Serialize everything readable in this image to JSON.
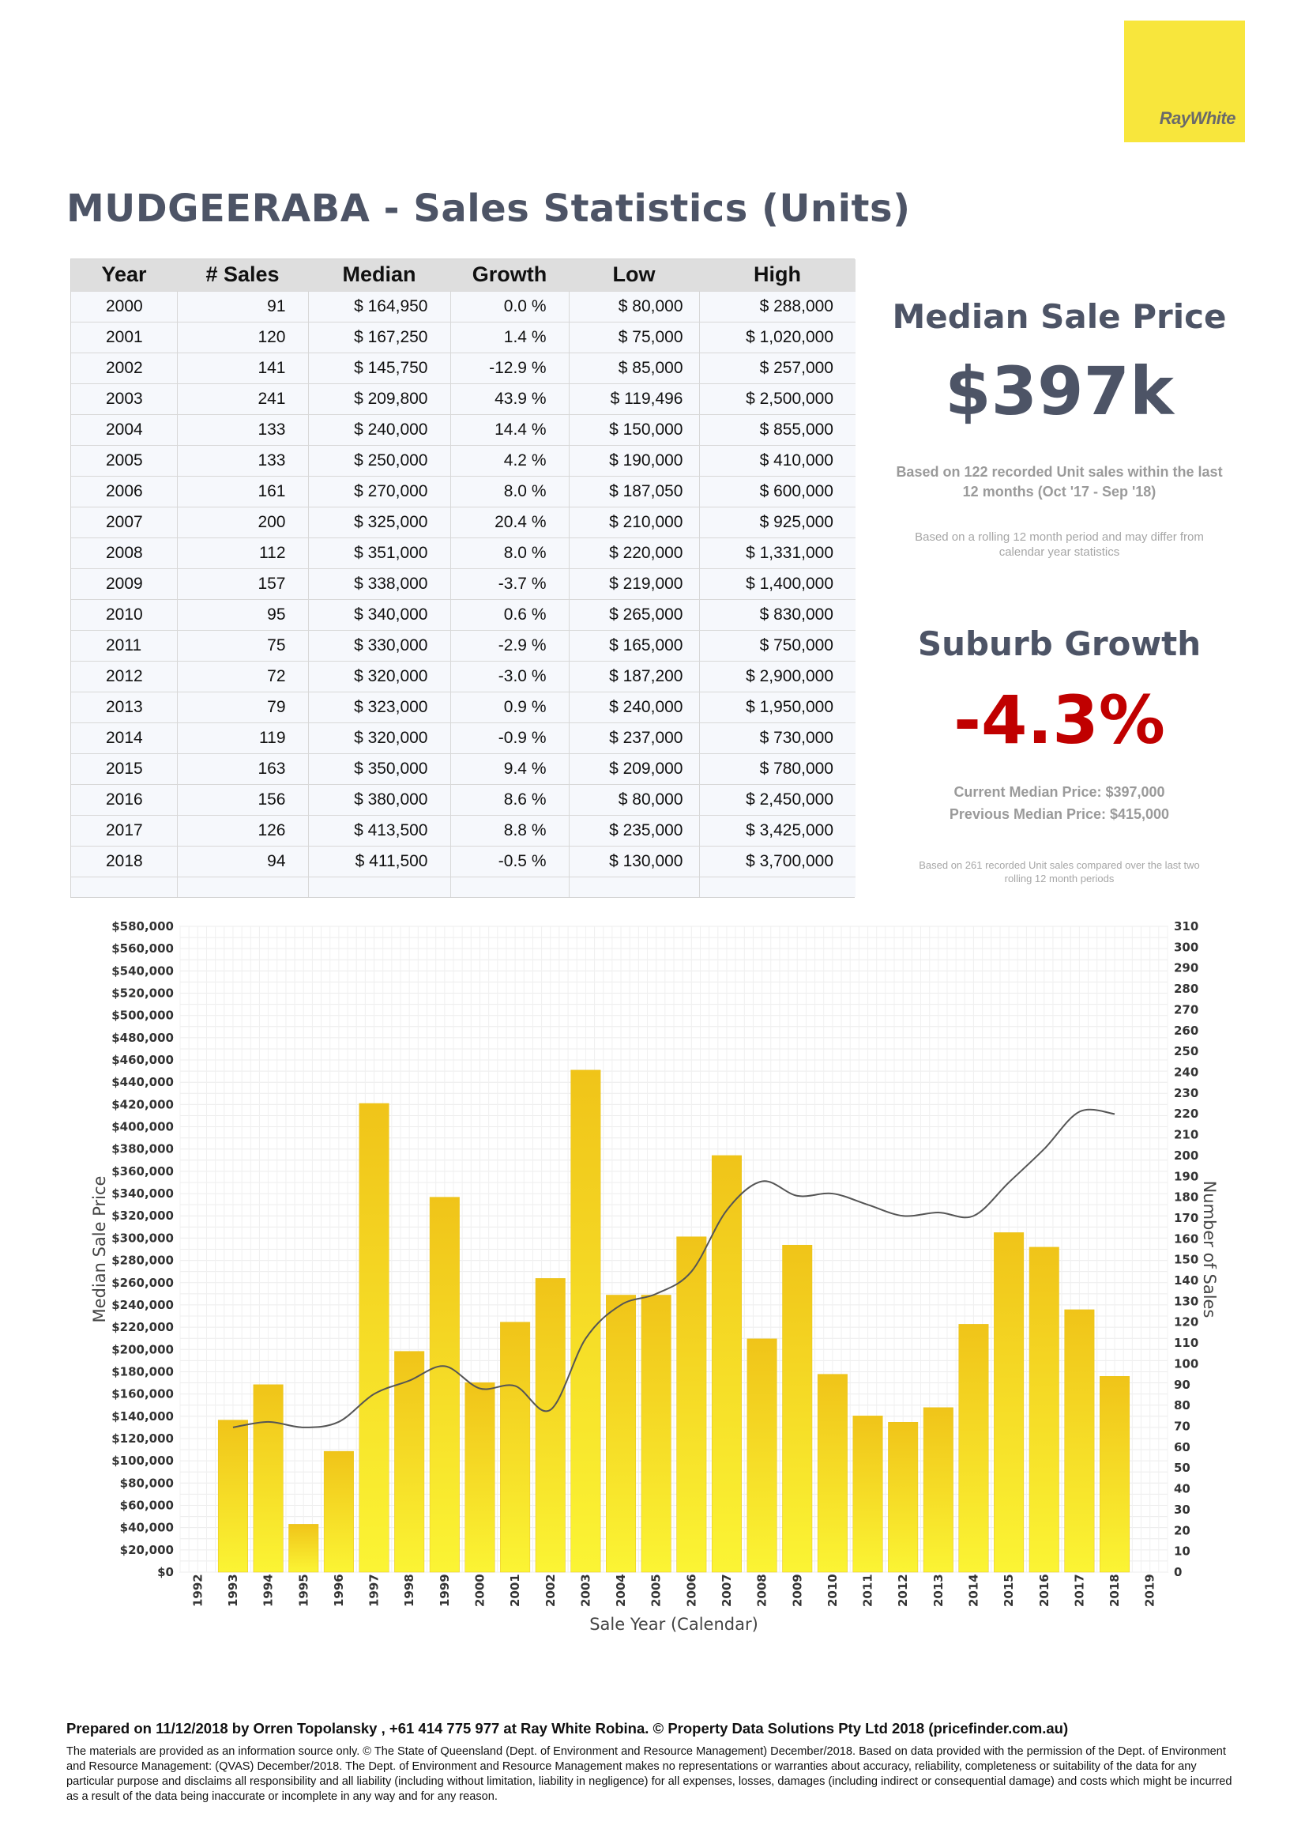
{
  "logo": {
    "text": "RayWhite",
    "color": "#f8e63c"
  },
  "title": "MUDGEERABA - Sales Statistics (Units)",
  "table": {
    "headers": [
      "Year",
      "# Sales",
      "Median",
      "Growth",
      "Low",
      "High"
    ],
    "rows": [
      {
        "year": "2000",
        "sales": "91",
        "median": "$ 164,950",
        "growth": "0.0 %",
        "low": "$ 80,000",
        "high": "$ 288,000",
        "trend": "pos"
      },
      {
        "year": "2001",
        "sales": "120",
        "median": "$ 167,250",
        "growth": "1.4 %",
        "low": "$ 75,000",
        "high": "$ 1,020,000",
        "trend": "pos"
      },
      {
        "year": "2002",
        "sales": "141",
        "median": "$ 145,750",
        "growth": "-12.9 %",
        "low": "$ 85,000",
        "high": "$ 257,000",
        "trend": "neg"
      },
      {
        "year": "2003",
        "sales": "241",
        "median": "$ 209,800",
        "growth": "43.9 %",
        "low": "$ 119,496",
        "high": "$ 2,500,000",
        "trend": "pos"
      },
      {
        "year": "2004",
        "sales": "133",
        "median": "$ 240,000",
        "growth": "14.4 %",
        "low": "$ 150,000",
        "high": "$ 855,000",
        "trend": "pos"
      },
      {
        "year": "2005",
        "sales": "133",
        "median": "$ 250,000",
        "growth": "4.2 %",
        "low": "$ 190,000",
        "high": "$ 410,000",
        "trend": "pos"
      },
      {
        "year": "2006",
        "sales": "161",
        "median": "$ 270,000",
        "growth": "8.0 %",
        "low": "$ 187,050",
        "high": "$ 600,000",
        "trend": "pos"
      },
      {
        "year": "2007",
        "sales": "200",
        "median": "$ 325,000",
        "growth": "20.4 %",
        "low": "$ 210,000",
        "high": "$ 925,000",
        "trend": "pos"
      },
      {
        "year": "2008",
        "sales": "112",
        "median": "$ 351,000",
        "growth": "8.0 %",
        "low": "$ 220,000",
        "high": "$ 1,331,000",
        "trend": "pos"
      },
      {
        "year": "2009",
        "sales": "157",
        "median": "$ 338,000",
        "growth": "-3.7 %",
        "low": "$ 219,000",
        "high": "$ 1,400,000",
        "trend": "neg"
      },
      {
        "year": "2010",
        "sales": "95",
        "median": "$ 340,000",
        "growth": "0.6 %",
        "low": "$ 265,000",
        "high": "$ 830,000",
        "trend": "pos"
      },
      {
        "year": "2011",
        "sales": "75",
        "median": "$ 330,000",
        "growth": "-2.9 %",
        "low": "$ 165,000",
        "high": "$ 750,000",
        "trend": "neg"
      },
      {
        "year": "2012",
        "sales": "72",
        "median": "$ 320,000",
        "growth": "-3.0 %",
        "low": "$ 187,200",
        "high": "$ 2,900,000",
        "trend": "neg"
      },
      {
        "year": "2013",
        "sales": "79",
        "median": "$ 323,000",
        "growth": "0.9 %",
        "low": "$ 240,000",
        "high": "$ 1,950,000",
        "trend": "pos"
      },
      {
        "year": "2014",
        "sales": "119",
        "median": "$ 320,000",
        "growth": "-0.9 %",
        "low": "$ 237,000",
        "high": "$ 730,000",
        "trend": "neg"
      },
      {
        "year": "2015",
        "sales": "163",
        "median": "$ 350,000",
        "growth": "9.4 %",
        "low": "$ 209,000",
        "high": "$ 780,000",
        "trend": "pos"
      },
      {
        "year": "2016",
        "sales": "156",
        "median": "$ 380,000",
        "growth": "8.6 %",
        "low": "$ 80,000",
        "high": "$ 2,450,000",
        "trend": "pos"
      },
      {
        "year": "2017",
        "sales": "126",
        "median": "$ 413,500",
        "growth": "8.8 %",
        "low": "$ 235,000",
        "high": "$ 3,425,000",
        "trend": "pos"
      },
      {
        "year": "2018",
        "sales": "94",
        "median": "$ 411,500",
        "growth": "-0.5 %",
        "low": "$ 130,000",
        "high": "$ 3,700,000",
        "trend": "neg"
      }
    ]
  },
  "summary": {
    "median_heading": "Median Sale Price",
    "median_value": "$397k",
    "median_note": "Based on 122 recorded Unit sales within the last 12 months (Oct '17 - Sep '18)",
    "median_small": "Based on a rolling 12 month period and may differ from calendar year statistics",
    "growth_heading": "Suburb Growth",
    "growth_value": "-4.3%",
    "current_median": "Current Median Price: $397,000",
    "previous_median": "Previous Median Price: $415,000",
    "growth_small": "Based on 261 recorded Unit sales compared over the last two rolling 12 month periods",
    "growth_color": "#c00000",
    "heading_color": "#4d5466"
  },
  "chart_data": {
    "type": "bar",
    "categories": [
      "1992",
      "1993",
      "1994",
      "1995",
      "1996",
      "1997",
      "1998",
      "1999",
      "2000",
      "2001",
      "2002",
      "2003",
      "2004",
      "2005",
      "2006",
      "2007",
      "2008",
      "2009",
      "2010",
      "2011",
      "2012",
      "2013",
      "2014",
      "2015",
      "2016",
      "2017",
      "2018",
      "2019"
    ],
    "series": [
      {
        "values": [
          null,
          73,
          90,
          23,
          58,
          225,
          106,
          180,
          91,
          120,
          141,
          241,
          133,
          133,
          161,
          200,
          112,
          157,
          95,
          75,
          72,
          79,
          119,
          163,
          156,
          126,
          94,
          null
        ]
      },
      {
        "values": [
          null,
          130000,
          135000,
          130000,
          135000,
          160000,
          172000,
          185000,
          164950,
          167250,
          145750,
          209800,
          240000,
          250000,
          270000,
          325000,
          351000,
          338000,
          340000,
          330000,
          320000,
          323000,
          320000,
          350000,
          380000,
          413500,
          411500,
          null
        ]
      }
    ],
    "xlabel": "Sale Year (Calendar)",
    "ylabel": "Median Sale Price",
    "y2label": "Number of Sales",
    "ylim": [
      0,
      580000
    ],
    "y2lim": [
      0,
      310
    ],
    "y_ticks": [
      "$0",
      "$20,000",
      "$40,000",
      "$60,000",
      "$80,000",
      "$100,000",
      "$120,000",
      "$140,000",
      "$160,000",
      "$180,000",
      "$200,000",
      "$220,000",
      "$240,000",
      "$260,000",
      "$280,000",
      "$300,000",
      "$320,000",
      "$340,000",
      "$360,000",
      "$380,000",
      "$400,000",
      "$420,000",
      "$440,000",
      "$460,000",
      "$480,000",
      "$500,000",
      "$520,000",
      "$540,000",
      "$560,000",
      "$580,000"
    ],
    "y2_ticks": [
      "0",
      "10",
      "20",
      "30",
      "40",
      "50",
      "60",
      "70",
      "80",
      "90",
      "100",
      "110",
      "120",
      "130",
      "140",
      "150",
      "160",
      "170",
      "180",
      "190",
      "200",
      "210",
      "220",
      "230",
      "240",
      "250",
      "260",
      "270",
      "280",
      "290",
      "300",
      "310"
    ],
    "grid": true,
    "bar_color_top": "#f0c419",
    "bar_color_bottom": "#fbf434",
    "line_color": "#555555"
  },
  "footer": {
    "prepared": "Prepared on 11/12/2018 by Orren Topolansky , +61 414 775 977 at Ray White Robina. © Property Data Solutions Pty Ltd 2018 (pricefinder.com.au)",
    "disclaimer": "The materials are provided as an information source only.  © The State of Queensland (Dept. of Environment and Resource Management) December/2018. Based on data provided with the permission of the Dept. of Environment and Resource Management: (QVAS) December/2018. The Dept. of Environment and Resource Management makes no representations or warranties about accuracy, reliability, completeness or suitability of the data for any particular purpose and disclaims all responsibility and all liability (including without limitation, liability in negligence) for all expenses, losses, damages (including indirect or consequential damage) and costs which might be incurred as a result of the data being inaccurate or incomplete in any way and for any reason."
  }
}
